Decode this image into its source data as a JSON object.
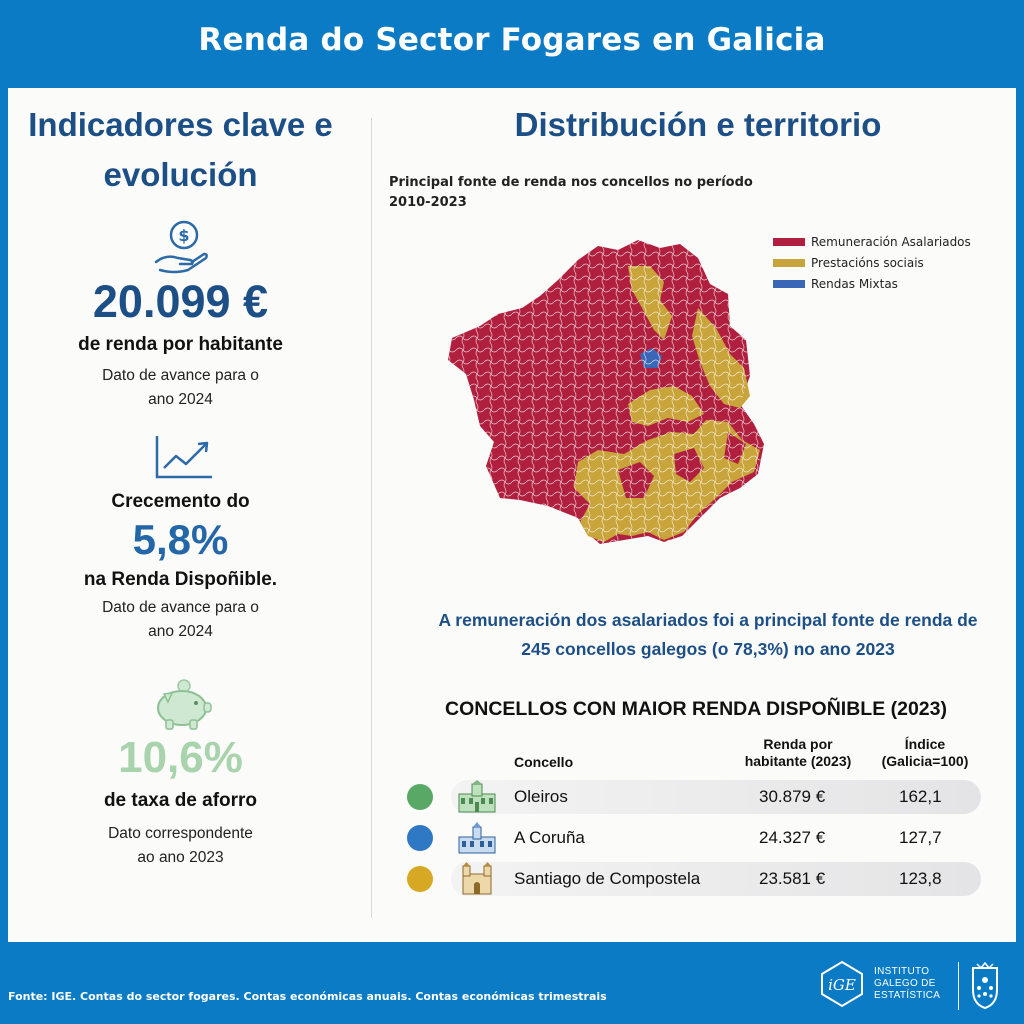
{
  "header": {
    "title": "Renda do Sector Fogares en Galicia"
  },
  "left": {
    "title": "Indicadores clave e evolución",
    "kpis": [
      {
        "icon": "money-hand-icon",
        "value": "20.099 €",
        "label": "de renda por habitante",
        "note_lines": [
          "Dato de avance para o",
          "ano 2024"
        ]
      },
      {
        "icon": "trend-up-chart-icon",
        "label_top": "Crecemento do",
        "value": "5,8%",
        "label": "na Renda Dispoñible.",
        "note_lines": [
          "Dato de avance para o",
          "ano 2024"
        ]
      },
      {
        "icon": "piggy-bank-icon",
        "value": "10,6%",
        "label": "de taxa de aforro",
        "note_lines": [
          "Dato correspondente",
          "ao ano 2023"
        ]
      }
    ]
  },
  "right": {
    "title": "Distribución e territorio",
    "map_caption_lines": [
      "Principal fonte de renda nos concellos no período",
      "2010-2023"
    ],
    "legend": [
      {
        "label": "Remuneración Asalariados",
        "color": "#b0203e"
      },
      {
        "label": "Prestacións sociais",
        "color": "#c9a43a"
      },
      {
        "label": "Rendas Mixtas",
        "color": "#3a66b8"
      }
    ],
    "summary_lines": [
      "A remuneración dos asalariados foi a principal fonte de renda de",
      "245 concellos galegos (o 78,3%) no ano 2023"
    ],
    "table": {
      "title": "CONCELLOS CON MAIOR RENDA DISPOÑIBLE (2023)",
      "headers": {
        "concello": "Concello",
        "renda_line1": "Renda por",
        "renda_line2": "habitante (2023)",
        "indice_line1": "Índice",
        "indice_line2": "(Galicia=100)"
      },
      "rows": [
        {
          "concello": "Oleiros",
          "renda": "30.879 €",
          "indice": "162,1",
          "dot_color": "#5aa866",
          "icon": "building-green-icon"
        },
        {
          "concello": "A Coruña",
          "renda": "24.327 €",
          "indice": "127,7",
          "dot_color": "#2f78c4",
          "icon": "building-blue-icon"
        },
        {
          "concello": "Santiago de Compostela",
          "renda": "23.581 €",
          "indice": "123,8",
          "dot_color": "#d6a823",
          "icon": "cathedral-icon"
        }
      ]
    }
  },
  "footer": {
    "source": "Fonte: IGE. Contas do sector fogares. Contas económicas anuais. Contas económicas trimestrais",
    "logo_lines": [
      "INSTITUTO",
      "GALEGO DE",
      "ESTATÍSTICA"
    ],
    "logo_mark": "iGE"
  },
  "colors": {
    "brand_blue": "#0a7bc4",
    "title_navy": "#1d4f87",
    "value_blue": "#2367a8",
    "aforro_green": "#a9d3ad"
  }
}
